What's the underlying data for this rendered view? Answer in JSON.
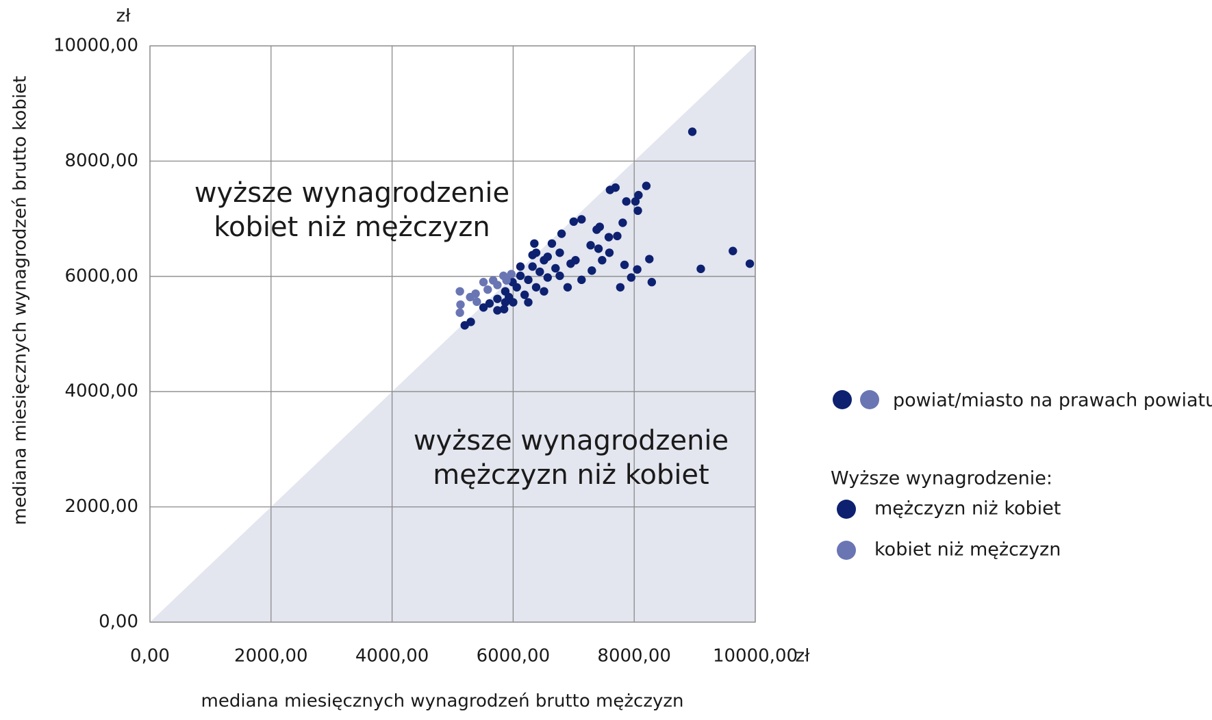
{
  "chart_data": {
    "type": "scatter",
    "x_label": "mediana miesięcznych wynagrodzeń brutto mężczyzn",
    "y_label": "mediana miesięcznych wynagrodzeń brutto kobiet",
    "x_unit": "zł",
    "y_unit": "zł",
    "xlim": [
      0,
      10000
    ],
    "ylim": [
      0,
      10000
    ],
    "xticks": [
      {
        "value": 0,
        "label": "0,00"
      },
      {
        "value": 2000,
        "label": "2000,00"
      },
      {
        "value": 4000,
        "label": "4000,00"
      },
      {
        "value": 6000,
        "label": "6000,00"
      },
      {
        "value": 8000,
        "label": "8000,00"
      },
      {
        "value": 10000,
        "label": "10000,00"
      }
    ],
    "yticks": [
      {
        "value": 0,
        "label": "0,00"
      },
      {
        "value": 2000,
        "label": "2000,00"
      },
      {
        "value": 4000,
        "label": "4000,00"
      },
      {
        "value": 6000,
        "label": "6000,00"
      },
      {
        "value": 8000,
        "label": "8000,00"
      },
      {
        "value": 10000,
        "label": "10000,00"
      }
    ],
    "grid": true,
    "shade_below_diagonal": true,
    "region_color": "#e3e5ef",
    "annotations": [
      {
        "lines": [
          "wyższe wynagrodzenie",
          "kobiet niż mężczyzn"
        ]
      },
      {
        "lines": [
          "wyższe wynagrodzenie",
          "mężczyzn niż kobiet"
        ]
      }
    ],
    "legend_marker_label": "powiat/miasto na prawach powiatu",
    "legend_title": "Wyższe wynagrodzenie:",
    "series": [
      {
        "name": "mężczyzn niż kobiet",
        "color": "#0d2170",
        "x": [
          8960,
          9630,
          9910,
          9100,
          8200,
          8070,
          8020,
          8060,
          7870,
          7690,
          7600,
          8250,
          8290,
          8050,
          7950,
          7770,
          7840,
          7810,
          7430,
          7380,
          7580,
          7720,
          7590,
          7130,
          7000,
          6800,
          7280,
          7410,
          7470,
          7300,
          7130,
          6900,
          7030,
          6770,
          6640,
          6510,
          6380,
          6320,
          6120,
          5990,
          5870,
          5740,
          5610,
          5510,
          5300,
          5200,
          5850,
          6000,
          6190,
          6380,
          6570,
          6700,
          6250,
          6510,
          6770,
          6950,
          5870,
          6060,
          6440,
          6250,
          6570,
          6350,
          6320,
          6120,
          5930,
          5740
        ],
        "y": [
          8510,
          6440,
          6220,
          6130,
          7570,
          7410,
          7300,
          7140,
          7300,
          7540,
          7500,
          6300,
          5900,
          6120,
          5980,
          5810,
          6200,
          6930,
          6860,
          6810,
          6680,
          6700,
          6410,
          6990,
          6950,
          6740,
          6540,
          6480,
          6280,
          6100,
          5940,
          5810,
          6280,
          6410,
          6570,
          6280,
          6410,
          6170,
          6010,
          5900,
          5740,
          5610,
          5530,
          5460,
          5210,
          5150,
          5430,
          5550,
          5680,
          5810,
          5980,
          6140,
          5550,
          5740,
          6010,
          6220,
          5550,
          5810,
          6080,
          5940,
          6340,
          6570,
          6370,
          6170,
          5640,
          5410
        ]
      },
      {
        "name": "kobiet niż mężczyzn",
        "color": "#6a76b3",
        "x": [
          5120,
          5130,
          5120,
          5380,
          5510,
          5670,
          5840,
          5970,
          5400,
          5580,
          5740,
          5890,
          5290
        ],
        "y": [
          5740,
          5510,
          5370,
          5700,
          5900,
          5930,
          6010,
          6040,
          5560,
          5770,
          5850,
          5930,
          5640
        ]
      }
    ]
  }
}
